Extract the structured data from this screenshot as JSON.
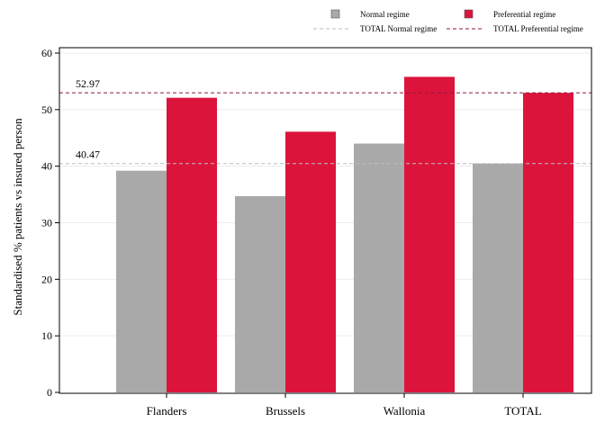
{
  "chart_data": {
    "type": "bar",
    "categories": [
      "Flanders",
      "Brussels",
      "Wallonia",
      "TOTAL"
    ],
    "series": [
      {
        "name": "Normal regime",
        "color": "#a9a9a9",
        "values": [
          39.2,
          34.7,
          44.0,
          40.47
        ]
      },
      {
        "name": "Preferential regime",
        "color": "#dc143c",
        "values": [
          52.1,
          46.1,
          55.8,
          52.97
        ]
      }
    ],
    "reference_lines": [
      {
        "name": "TOTAL Normal regime",
        "value": 40.47,
        "label": "40.47",
        "color": "#bdbdbd",
        "style": "dashed"
      },
      {
        "name": "TOTAL Preferential regime",
        "value": 52.97,
        "label": "52.97",
        "color": "#8b1a3c",
        "style": "dashed"
      }
    ],
    "title": "",
    "xlabel": "",
    "ylabel": "Standardised % patients vs insured person",
    "ylim": [
      0,
      60
    ],
    "yticks": [
      0,
      10,
      20,
      30,
      40,
      50,
      60
    ],
    "grid": true,
    "legend_position": "top"
  }
}
